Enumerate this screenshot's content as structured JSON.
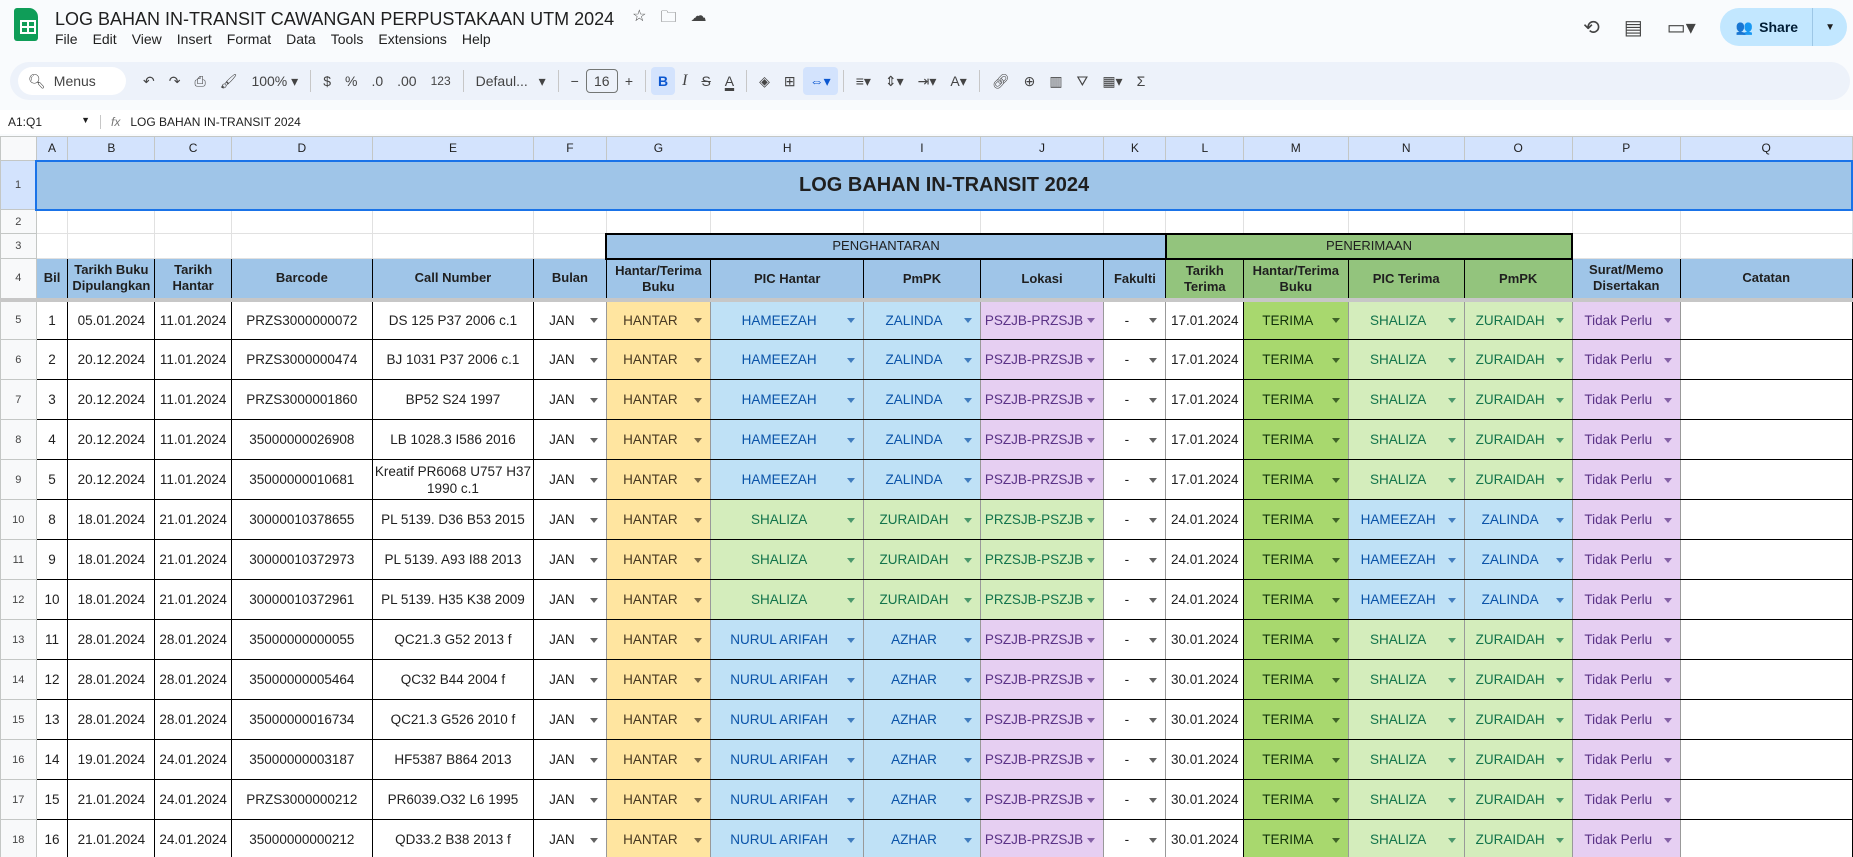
{
  "app": {
    "doc_title": "LOG BAHAN IN-TRANSIT CAWANGAN PERPUSTAKAAN UTM 2024",
    "menu": [
      "File",
      "Edit",
      "View",
      "Insert",
      "Format",
      "Data",
      "Tools",
      "Extensions",
      "Help"
    ],
    "share_label": "Share"
  },
  "toolbar": {
    "search_label": "Menus",
    "zoom": "100%",
    "currency": "$",
    "percent": "%",
    "dec_decrease": ".0",
    "dec_increase": ".00",
    "number_format": "123",
    "font": "Defaul...",
    "font_size": "16",
    "bold": "B",
    "italic": "I",
    "sum": "Σ"
  },
  "formula_bar": {
    "name_box": "A1:Q1",
    "fx": "fx",
    "content": "LOG BAHAN IN-TRANSIT 2024"
  },
  "columns": [
    "A",
    "B",
    "C",
    "D",
    "E",
    "F",
    "G",
    "H",
    "I",
    "J",
    "K",
    "L",
    "M",
    "N",
    "O",
    "P",
    "Q"
  ],
  "sheet": {
    "title": "LOG BAHAN IN-TRANSIT 2024",
    "section_send": "PENGHANTARAN",
    "section_receive": "PENERIMAAN",
    "headers": [
      "Bil",
      "Tarikh Buku Dipulangkan",
      "Tarikh Hantar",
      "Barcode",
      "Call Number",
      "Bulan",
      "Hantar/Terima Buku",
      "PIC Hantar",
      "PmPK",
      "Lokasi",
      "Fakulti",
      "Tarikh Terima",
      "Hantar/Terima Buku",
      "PIC Terima",
      "PmPK",
      "Surat/Memo Disertakan",
      "Catatan"
    ],
    "rows": [
      [
        "1",
        "05.01.2024",
        "11.01.2024",
        "PRZS3000000072",
        "DS 125 P37 2006 c.1",
        "JAN",
        "HANTAR",
        "HAMEEZAH",
        "ZALINDA",
        "PSZJB-PRZSJB",
        "-",
        "17.01.2024",
        "TERIMA",
        "SHALIZA",
        "ZURAIDAH",
        "Tidak Perlu",
        ""
      ],
      [
        "2",
        "20.12.2024",
        "11.01.2024",
        "PRZS3000000474",
        "BJ 1031 P37 2006 c.1",
        "JAN",
        "HANTAR",
        "HAMEEZAH",
        "ZALINDA",
        "PSZJB-PRZSJB",
        "-",
        "17.01.2024",
        "TERIMA",
        "SHALIZA",
        "ZURAIDAH",
        "Tidak Perlu",
        ""
      ],
      [
        "3",
        "20.12.2024",
        "11.01.2024",
        "PRZS3000001860",
        "BP52 S24 1997",
        "JAN",
        "HANTAR",
        "HAMEEZAH",
        "ZALINDA",
        "PSZJB-PRZSJB",
        "-",
        "17.01.2024",
        "TERIMA",
        "SHALIZA",
        "ZURAIDAH",
        "Tidak Perlu",
        ""
      ],
      [
        "4",
        "20.12.2024",
        "11.01.2024",
        "35000000026908",
        "LB 1028.3 I586 2016",
        "JAN",
        "HANTAR",
        "HAMEEZAH",
        "ZALINDA",
        "PSZJB-PRZSJB",
        "-",
        "17.01.2024",
        "TERIMA",
        "SHALIZA",
        "ZURAIDAH",
        "Tidak Perlu",
        ""
      ],
      [
        "5",
        "20.12.2024",
        "11.01.2024",
        "35000000010681",
        "Kreatif PR6068 U757 H37 1990 c.1",
        "JAN",
        "HANTAR",
        "HAMEEZAH",
        "ZALINDA",
        "PSZJB-PRZSJB",
        "-",
        "17.01.2024",
        "TERIMA",
        "SHALIZA",
        "ZURAIDAH",
        "Tidak Perlu",
        ""
      ],
      [
        "8",
        "18.01.2024",
        "21.01.2024",
        "30000010378655",
        "PL 5139. D36 B53 2015",
        "JAN",
        "HANTAR",
        "SHALIZA",
        "ZURAIDAH",
        "PRZSJB-PSZJB",
        "-",
        "24.01.2024",
        "TERIMA",
        "HAMEEZAH",
        "ZALINDA",
        "Tidak Perlu",
        ""
      ],
      [
        "9",
        "18.01.2024",
        "21.01.2024",
        "30000010372973",
        "PL 5139. A93 I88 2013",
        "JAN",
        "HANTAR",
        "SHALIZA",
        "ZURAIDAH",
        "PRZSJB-PSZJB",
        "-",
        "24.01.2024",
        "TERIMA",
        "HAMEEZAH",
        "ZALINDA",
        "Tidak Perlu",
        ""
      ],
      [
        "10",
        "18.01.2024",
        "21.01.2024",
        "30000010372961",
        "PL 5139. H35 K38 2009",
        "JAN",
        "HANTAR",
        "SHALIZA",
        "ZURAIDAH",
        "PRZSJB-PSZJB",
        "-",
        "24.01.2024",
        "TERIMA",
        "HAMEEZAH",
        "ZALINDA",
        "Tidak Perlu",
        ""
      ],
      [
        "11",
        "28.01.2024",
        "28.01.2024",
        "35000000000055",
        "QC21.3 G52 2013 f",
        "JAN",
        "HANTAR",
        "NURUL ARIFAH",
        "AZHAR",
        "PSZJB-PRZSJB",
        "-",
        "30.01.2024",
        "TERIMA",
        "SHALIZA",
        "ZURAIDAH",
        "Tidak Perlu",
        ""
      ],
      [
        "12",
        "28.01.2024",
        "28.01.2024",
        "35000000005464",
        "QC32 B44 2004 f",
        "JAN",
        "HANTAR",
        "NURUL ARIFAH",
        "AZHAR",
        "PSZJB-PRZSJB",
        "-",
        "30.01.2024",
        "TERIMA",
        "SHALIZA",
        "ZURAIDAH",
        "Tidak Perlu",
        ""
      ],
      [
        "13",
        "28.01.2024",
        "28.01.2024",
        "35000000016734",
        "QC21.3 G526 2010 f",
        "JAN",
        "HANTAR",
        "NURUL ARIFAH",
        "AZHAR",
        "PSZJB-PRZSJB",
        "-",
        "30.01.2024",
        "TERIMA",
        "SHALIZA",
        "ZURAIDAH",
        "Tidak Perlu",
        ""
      ],
      [
        "14",
        "19.01.2024",
        "24.01.2024",
        "35000000003187",
        "HF5387 B864 2013",
        "JAN",
        "HANTAR",
        "NURUL ARIFAH",
        "AZHAR",
        "PSZJB-PRZSJB",
        "-",
        "30.01.2024",
        "TERIMA",
        "SHALIZA",
        "ZURAIDAH",
        "Tidak Perlu",
        ""
      ],
      [
        "15",
        "21.01.2024",
        "24.01.2024",
        "PRZS3000000212",
        "PR6039.O32 L6 1995",
        "JAN",
        "HANTAR",
        "NURUL ARIFAH",
        "AZHAR",
        "PSZJB-PRZSJB",
        "-",
        "30.01.2024",
        "TERIMA",
        "SHALIZA",
        "ZURAIDAH",
        "Tidak Perlu",
        ""
      ],
      [
        "16",
        "21.01.2024",
        "24.01.2024",
        "35000000000212",
        "QD33.2 B38 2013 f",
        "JAN",
        "HANTAR",
        "NURUL ARIFAH",
        "AZHAR",
        "PSZJB-PRZSJB",
        "-",
        "30.01.2024",
        "TERIMA",
        "SHALIZA",
        "ZURAIDAH",
        "Tidak Perlu",
        ""
      ]
    ]
  },
  "chip_colors": {
    "HANTAR": {
      "bg": "#ffe5a0",
      "fg": "#473821"
    },
    "TERIMA": {
      "bg": "#a8d86e",
      "fg": "#11300a"
    },
    "HAMEEZAH": {
      "bg": "#bfe1f6",
      "fg": "#0a53a8"
    },
    "ZALINDA": {
      "bg": "#bfe1f6",
      "fg": "#0a53a8"
    },
    "NURUL ARIFAH": {
      "bg": "#bfe1f6",
      "fg": "#0a53a8"
    },
    "AZHAR": {
      "bg": "#bfe1f6",
      "fg": "#0a53a8"
    },
    "SHALIZA": {
      "bg": "#d4edbc",
      "fg": "#11734b"
    },
    "ZURAIDAH": {
      "bg": "#d4edbc",
      "fg": "#11734b"
    },
    "PSZJB-PRZSJB": {
      "bg": "#e6cff2",
      "fg": "#5a3286"
    },
    "PRZSJB-PSZJB": {
      "bg": "#d4edbc",
      "fg": "#11734b"
    },
    "Tidak Perlu": {
      "bg": "#e6cff2",
      "fg": "#5a3286"
    },
    "JAN": {
      "bg": "#ffffff",
      "fg": "#1f1f1f"
    },
    "-": {
      "bg": "#ffffff",
      "fg": "#1f1f1f"
    }
  },
  "dropdown_columns": [
    5,
    6,
    7,
    8,
    9,
    10,
    12,
    13,
    14,
    15
  ]
}
